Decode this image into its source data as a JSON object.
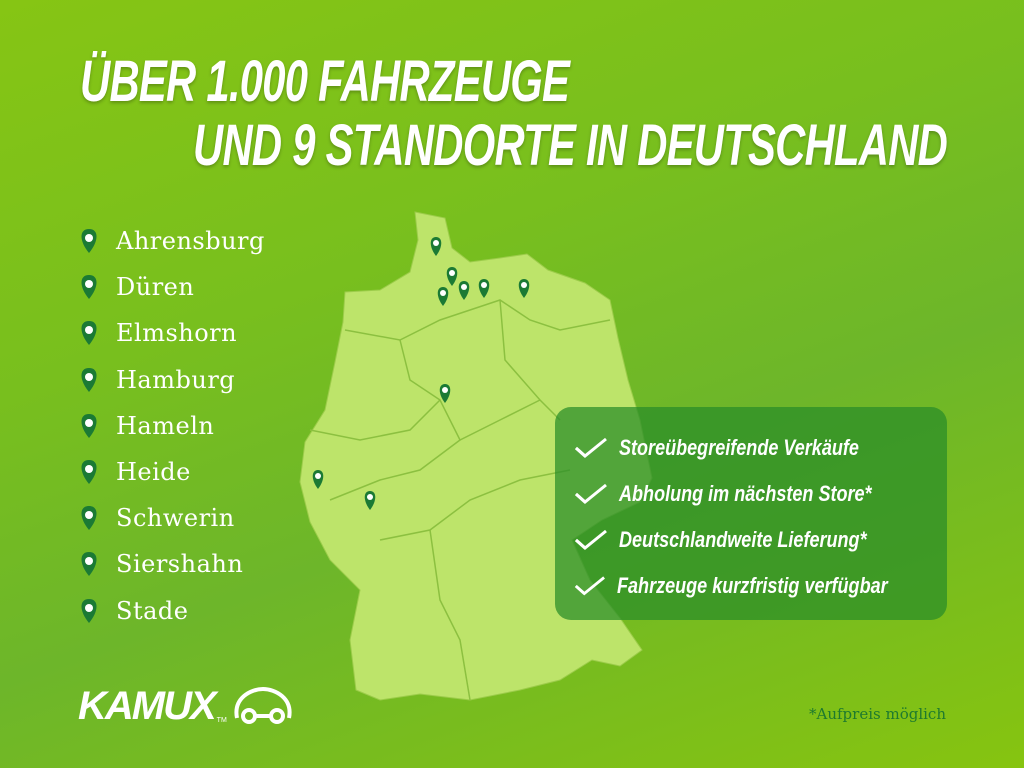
{
  "headline": {
    "line1_a": "ÜBER",
    "line1_b": "1.000 FAHRZEUGE",
    "line2_a": "UND",
    "line2_b": "9 STANDORTE",
    "line2_c": "IN DEUTSCHLAND"
  },
  "locations": [
    "Ahrensburg",
    "Düren",
    "Elmshorn",
    "Hamburg",
    "Hameln",
    "Heide",
    "Schwerin",
    "Siershahn",
    "Stade"
  ],
  "features": [
    "Storeübegreifende Verkäufe",
    "Abholung im nächsten Store*",
    "Deutschlandweite Lieferung*",
    "Fahrzeuge kurzfristig verfügbar"
  ],
  "logo": {
    "text": "KAMUX",
    "tm": "TM"
  },
  "footnote": "*Aufpreis möglich",
  "colors": {
    "background": "#78bf1e",
    "map": "#bde46a",
    "pin": "#1b7a34",
    "box": "#2f8f2f"
  },
  "icons": {
    "location": "map-pin-icon",
    "feature": "checkmark-icon",
    "logo": "car-icon"
  }
}
